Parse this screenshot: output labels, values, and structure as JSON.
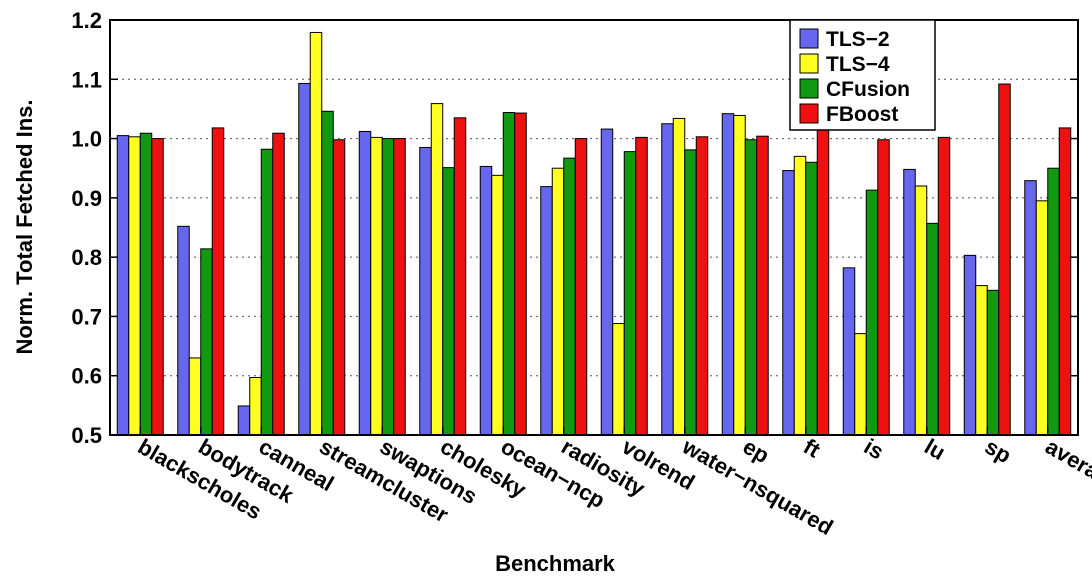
{
  "chart_data": {
    "type": "bar",
    "title": "",
    "xlabel": "Benchmark",
    "ylabel": "Norm. Total Fetched Ins.",
    "ylim": [
      0.5,
      1.2
    ],
    "yticks": [
      "0.5",
      "0.6",
      "0.7",
      "0.8",
      "0.9",
      "1.0",
      "1.1",
      "1.2"
    ],
    "grid": "horizontal dotted",
    "legend_position": "top-right",
    "categories": [
      "blackscholes",
      "bodytrack",
      "canneal",
      "streamcluster",
      "swaptions",
      "cholesky",
      "ocean−ncp",
      "radiosity",
      "volrend",
      "water−nsquared",
      "ep",
      "ft",
      "is",
      "lu",
      "sp",
      "average"
    ],
    "series": [
      {
        "name": "TLS−2",
        "color": "#6666ee",
        "values": [
          1.005,
          0.852,
          0.549,
          1.093,
          1.012,
          0.985,
          0.953,
          0.919,
          1.016,
          1.025,
          1.042,
          0.946,
          0.782,
          0.948,
          0.803,
          0.929
        ]
      },
      {
        "name": "TLS−4",
        "color": "#ffff22",
        "values": [
          1.003,
          0.63,
          0.597,
          1.179,
          1.002,
          1.059,
          0.938,
          0.95,
          0.688,
          1.034,
          1.039,
          0.97,
          0.671,
          0.92,
          0.752,
          0.895
        ]
      },
      {
        "name": "CFusion",
        "color": "#119911",
        "values": [
          1.009,
          0.814,
          0.982,
          1.046,
          1.0,
          0.951,
          1.044,
          0.967,
          0.978,
          0.981,
          0.998,
          0.96,
          0.913,
          0.857,
          0.744,
          0.95
        ]
      },
      {
        "name": "FBoost",
        "color": "#ee1111",
        "values": [
          1.0,
          1.018,
          1.009,
          0.998,
          1.0,
          1.035,
          1.043,
          1.0,
          1.002,
          1.003,
          1.004,
          1.073,
          0.998,
          1.002,
          1.092,
          1.018
        ]
      }
    ]
  }
}
